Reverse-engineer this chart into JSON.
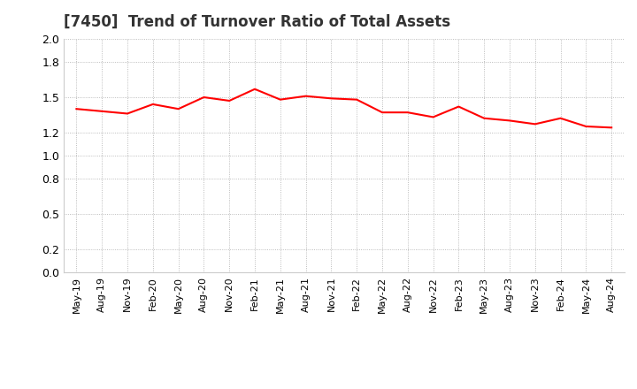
{
  "title": "[7450]  Trend of Turnover Ratio of Total Assets",
  "line_color": "#FF0000",
  "line_width": 1.5,
  "background_color": "#FFFFFF",
  "grid_color": "#AAAAAA",
  "ylim": [
    0.0,
    2.0
  ],
  "yticks": [
    0.0,
    0.2,
    0.5,
    0.8,
    1.0,
    1.2,
    1.5,
    1.8,
    2.0
  ],
  "x_labels": [
    "May-19",
    "Aug-19",
    "Nov-19",
    "Feb-20",
    "May-20",
    "Aug-20",
    "Nov-20",
    "Feb-21",
    "May-21",
    "Aug-21",
    "Nov-21",
    "Feb-22",
    "May-22",
    "Aug-22",
    "Nov-22",
    "Feb-23",
    "May-23",
    "Aug-23",
    "Nov-23",
    "Feb-24",
    "May-24",
    "Aug-24"
  ],
  "values": [
    1.4,
    1.38,
    1.36,
    1.44,
    1.4,
    1.5,
    1.47,
    1.57,
    1.48,
    1.51,
    1.49,
    1.48,
    1.37,
    1.37,
    1.33,
    1.42,
    1.32,
    1.3,
    1.27,
    1.32,
    1.25,
    1.24
  ],
  "title_fontsize": 12,
  "tick_fontsize": 9,
  "xtick_fontsize": 8
}
